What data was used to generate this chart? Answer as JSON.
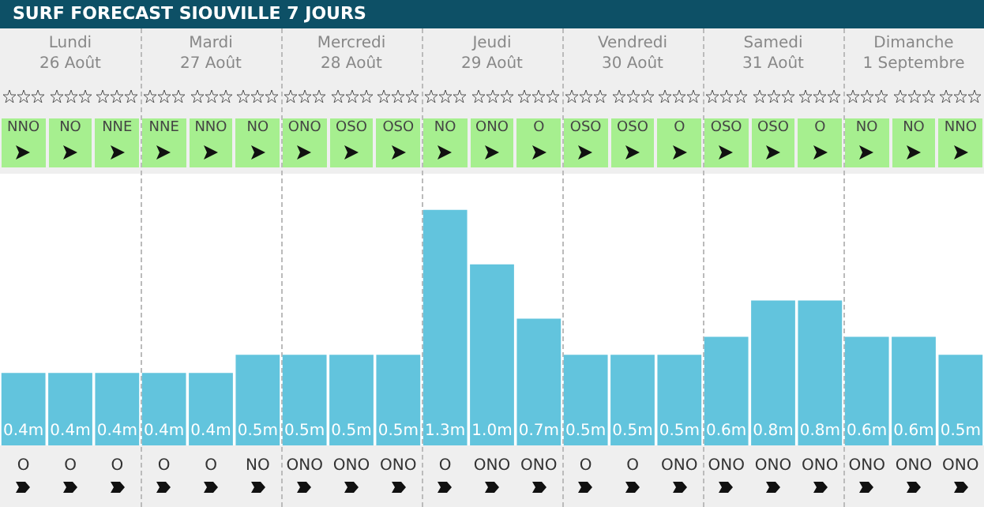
{
  "chart_data": {
    "type": "bar",
    "title": "SURF FORECAST SIOUVILLE 7 JOURS",
    "categories": [
      "O",
      "O",
      "O",
      "O",
      "O",
      "NO",
      "ONO",
      "ONO",
      "ONO",
      "O",
      "ONO",
      "ONO",
      "O",
      "O",
      "ONO",
      "ONO",
      "ONO",
      "ONO",
      "ONO",
      "ONO",
      "ONO"
    ],
    "values": [
      0.4,
      0.4,
      0.4,
      0.4,
      0.4,
      0.5,
      0.5,
      0.5,
      0.5,
      1.3,
      1.0,
      0.7,
      0.5,
      0.5,
      0.5,
      0.6,
      0.8,
      0.8,
      0.6,
      0.6,
      0.5
    ],
    "value_labels": [
      "0.4m",
      "0.4m",
      "0.4m",
      "0.4m",
      "0.4m",
      "0.5m",
      "0.5m",
      "0.5m",
      "0.5m",
      "1.3m",
      "1.0m",
      "0.7m",
      "0.5m",
      "0.5m",
      "0.5m",
      "0.6m",
      "0.8m",
      "0.8m",
      "0.6m",
      "0.6m",
      "0.5m"
    ],
    "color": "#62c4dd",
    "annotations": [
      "Lundi\n26 Août",
      "Mardi\n27 Août",
      "Mercredi\n28 Août",
      "Jeudi\n29 Août",
      "Vendredi\n30 Août",
      "Samedi\n31 Août",
      "Dimanche\n1 Septembre",
      "NNO",
      "NO",
      "NNE",
      "NNE",
      "NNO",
      "NO",
      "ONO",
      "OSO",
      "OSO",
      "NO",
      "ONO",
      "O",
      "OSO",
      "OSO",
      "O",
      "OSO",
      "OSO",
      "O",
      "NO",
      "NO",
      "NNO"
    ],
    "grid": false
  }
}
